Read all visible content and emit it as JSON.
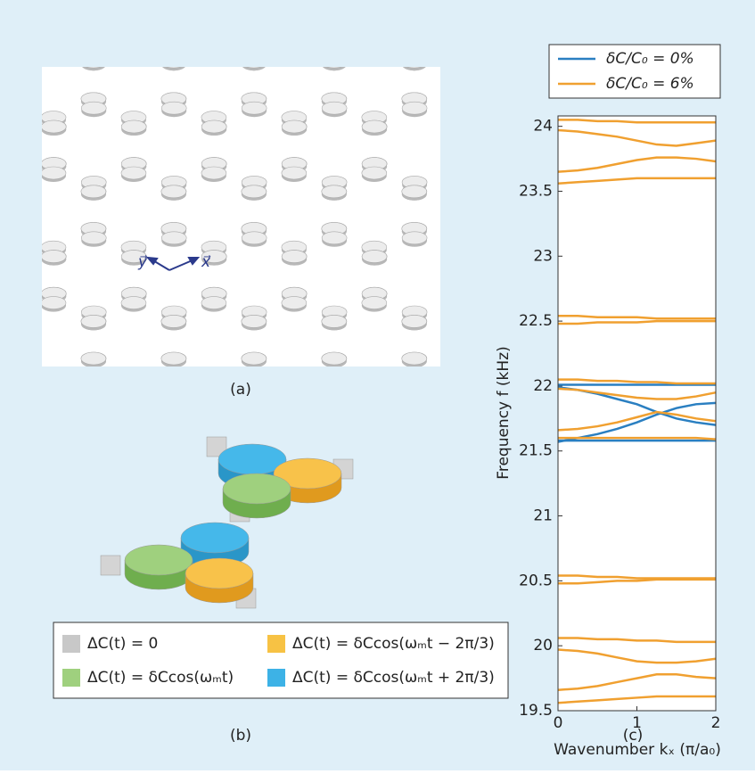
{
  "panels": {
    "a": {
      "label": "(a)",
      "axis_y": "y⃗",
      "axis_x": "x⃗"
    },
    "b": {
      "label": "(b)",
      "legend": [
        {
          "text": "ΔC(t) = 0",
          "color": "#c8c8c8"
        },
        {
          "text": "ΔC(t) = δCcos(ωₘt − 2π/3)",
          "color": "#f7c244"
        },
        {
          "text": "ΔC(t) = δCcos(ωₘt)",
          "color": "#9fd07e"
        },
        {
          "text": "ΔC(t) = δCcos(ωₘt + 2π/3)",
          "color": "#3db2e6"
        }
      ]
    }
  },
  "chart_data": {
    "type": "line",
    "label": "(c)",
    "x_label": "Wavenumber kₓ (π/a₀)",
    "y_label": "Frequency f (kHz)",
    "x": [
      0,
      0.25,
      0.5,
      0.75,
      1,
      1.25,
      1.5,
      1.75,
      2
    ],
    "xlim": [
      0,
      2
    ],
    "ylim": [
      19.5,
      24.08
    ],
    "xticks": [
      0,
      1,
      2
    ],
    "yticks": [
      19.5,
      20,
      20.5,
      21,
      21.5,
      22,
      22.5,
      23,
      23.5,
      24
    ],
    "series": [
      {
        "name": "δC/C₀ = 0%",
        "color": "#2a7fc1",
        "curves": [
          [
            22.01,
            22.01,
            22.01,
            22.01,
            22.01,
            22.01,
            22.01,
            22.01,
            22.01
          ],
          [
            21.99,
            21.97,
            21.94,
            21.9,
            21.86,
            21.8,
            21.75,
            21.72,
            21.7
          ],
          [
            21.57,
            21.6,
            21.63,
            21.67,
            21.72,
            21.78,
            21.83,
            21.86,
            21.87
          ],
          [
            21.58,
            21.58,
            21.58,
            21.58,
            21.58,
            21.58,
            21.58,
            21.58,
            21.58
          ]
        ]
      },
      {
        "name": "δC/C₀ = 6%",
        "color": "#f0a030",
        "curves": [
          [
            24.05,
            24.05,
            24.04,
            24.04,
            24.03,
            24.03,
            24.03,
            24.03,
            24.03
          ],
          [
            23.97,
            23.96,
            23.94,
            23.92,
            23.89,
            23.86,
            23.85,
            23.87,
            23.89
          ],
          [
            23.65,
            23.66,
            23.68,
            23.71,
            23.74,
            23.76,
            23.76,
            23.75,
            23.73
          ],
          [
            23.56,
            23.57,
            23.58,
            23.59,
            23.6,
            23.6,
            23.6,
            23.6,
            23.6
          ],
          [
            22.54,
            22.54,
            22.53,
            22.53,
            22.53,
            22.52,
            22.52,
            22.52,
            22.52
          ],
          [
            22.48,
            22.48,
            22.49,
            22.49,
            22.49,
            22.5,
            22.5,
            22.5,
            22.5
          ],
          [
            22.05,
            22.05,
            22.04,
            22.04,
            22.03,
            22.03,
            22.02,
            22.02,
            22.02
          ],
          [
            21.98,
            21.97,
            21.95,
            21.93,
            21.91,
            21.9,
            21.9,
            21.92,
            21.95
          ],
          [
            21.66,
            21.67,
            21.69,
            21.72,
            21.76,
            21.8,
            21.78,
            21.75,
            21.73
          ],
          [
            21.6,
            21.6,
            21.6,
            21.6,
            21.6,
            21.6,
            21.6,
            21.6,
            21.59
          ],
          [
            20.54,
            20.54,
            20.53,
            20.53,
            20.52,
            20.52,
            20.52,
            20.52,
            20.52
          ],
          [
            20.48,
            20.48,
            20.49,
            20.5,
            20.5,
            20.51,
            20.51,
            20.51,
            20.51
          ],
          [
            20.06,
            20.06,
            20.05,
            20.05,
            20.04,
            20.04,
            20.03,
            20.03,
            20.03
          ],
          [
            19.97,
            19.96,
            19.94,
            19.91,
            19.88,
            19.87,
            19.87,
            19.88,
            19.9
          ],
          [
            19.66,
            19.67,
            19.69,
            19.72,
            19.75,
            19.78,
            19.78,
            19.76,
            19.75
          ],
          [
            19.56,
            19.57,
            19.58,
            19.59,
            19.6,
            19.61,
            19.61,
            19.61,
            19.61
          ]
        ]
      }
    ]
  }
}
